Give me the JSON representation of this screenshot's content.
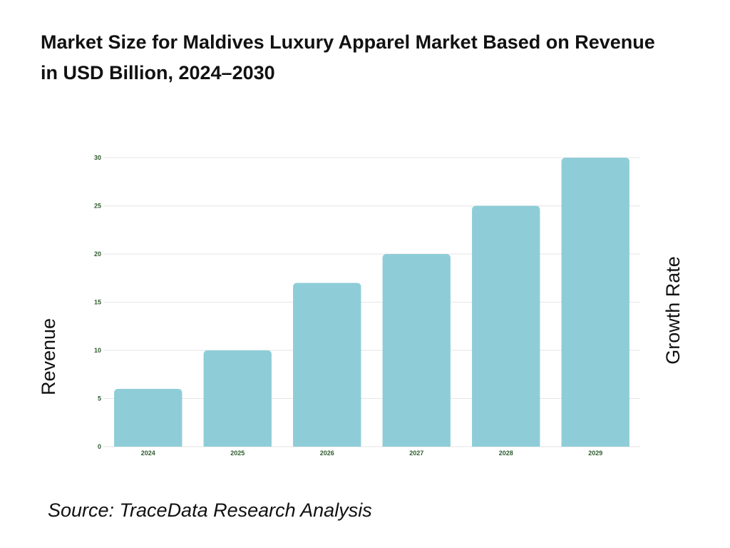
{
  "title_line1": "Market Size for Maldives Luxury Apparel Market Based on Revenue",
  "title_line2": "in USD Billion, 2024–2030",
  "source": "Source: TraceData Research Analysis",
  "colors": {
    "bar": "#8ecdd8",
    "tick_label": "#2e5c2e",
    "grid": "#e6e6e6"
  },
  "chart_data": {
    "type": "bar",
    "categories": [
      "2024",
      "2025",
      "2026",
      "2027",
      "2028",
      "2029"
    ],
    "values": [
      6,
      10,
      17,
      20,
      25,
      30
    ],
    "ylabel": "Revenue",
    "y2label": "Growth Rate",
    "ylim": [
      0,
      30
    ],
    "yticks": [
      0,
      5,
      10,
      15,
      20,
      25,
      30
    ],
    "grid": true,
    "legend": "none"
  }
}
